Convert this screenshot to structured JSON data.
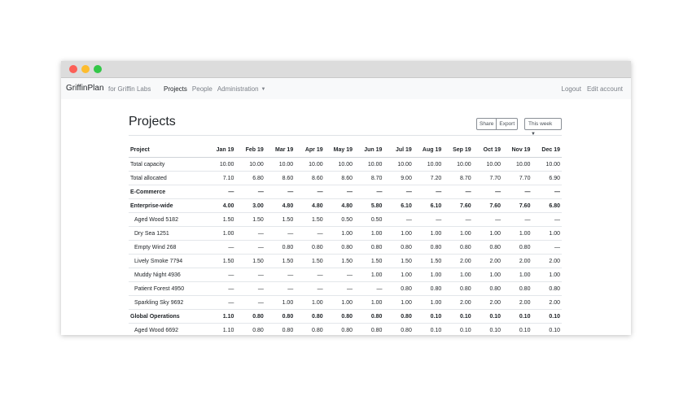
{
  "window": {
    "controls": [
      "close",
      "minimize",
      "maximize"
    ]
  },
  "navbar": {
    "brand": "GriffinPlan",
    "org": "for Griffin Labs",
    "links": [
      {
        "label": "Projects",
        "active": true
      },
      {
        "label": "People",
        "active": false
      },
      {
        "label": "Administration",
        "active": false,
        "dropdown": true
      }
    ],
    "right": [
      "Logout",
      "Edit account"
    ]
  },
  "page": {
    "title": "Projects",
    "buttons": {
      "share": "Share",
      "export": "Export",
      "range": "This week"
    }
  },
  "table": {
    "header": [
      "Project",
      "Jan 19",
      "Feb 19",
      "Mar 19",
      "Apr 19",
      "May 19",
      "Jun 19",
      "Jul 19",
      "Aug 19",
      "Sep 19",
      "Oct 19",
      "Nov 19",
      "Dec 19"
    ],
    "rows": [
      {
        "name": "Total capacity",
        "bold": false,
        "indent": false,
        "values": [
          "10.00",
          "10.00",
          "10.00",
          "10.00",
          "10.00",
          "10.00",
          "10.00",
          "10.00",
          "10.00",
          "10.00",
          "10.00",
          "10.00"
        ]
      },
      {
        "name": "Total allocated",
        "bold": false,
        "indent": false,
        "values": [
          "7.10",
          "6.80",
          "8.60",
          "8.60",
          "8.60",
          "8.70",
          "9.00",
          "7.20",
          "8.70",
          "7.70",
          "7.70",
          "6.90"
        ]
      },
      {
        "name": "E-Commerce",
        "bold": true,
        "indent": false,
        "values": [
          "—",
          "—",
          "—",
          "—",
          "—",
          "—",
          "—",
          "—",
          "—",
          "—",
          "—",
          "—"
        ]
      },
      {
        "name": "Enterprise-wide",
        "bold": true,
        "indent": false,
        "values": [
          "4.00",
          "3.00",
          "4.80",
          "4.80",
          "4.80",
          "5.80",
          "6.10",
          "6.10",
          "7.60",
          "7.60",
          "7.60",
          "6.80"
        ]
      },
      {
        "name": "Aged Wood 5182",
        "bold": false,
        "indent": true,
        "values": [
          "1.50",
          "1.50",
          "1.50",
          "1.50",
          "0.50",
          "0.50",
          "—",
          "—",
          "—",
          "—",
          "—",
          "—"
        ]
      },
      {
        "name": "Dry Sea 1251",
        "bold": false,
        "indent": true,
        "values": [
          "1.00",
          "—",
          "—",
          "—",
          "1.00",
          "1.00",
          "1.00",
          "1.00",
          "1.00",
          "1.00",
          "1.00",
          "1.00"
        ]
      },
      {
        "name": "Empty Wind 268",
        "bold": false,
        "indent": true,
        "values": [
          "—",
          "—",
          "0.80",
          "0.80",
          "0.80",
          "0.80",
          "0.80",
          "0.80",
          "0.80",
          "0.80",
          "0.80",
          "—"
        ]
      },
      {
        "name": "Lively Smoke 7794",
        "bold": false,
        "indent": true,
        "values": [
          "1.50",
          "1.50",
          "1.50",
          "1.50",
          "1.50",
          "1.50",
          "1.50",
          "1.50",
          "2.00",
          "2.00",
          "2.00",
          "2.00"
        ]
      },
      {
        "name": "Muddy Night 4936",
        "bold": false,
        "indent": true,
        "values": [
          "—",
          "—",
          "—",
          "—",
          "—",
          "1.00",
          "1.00",
          "1.00",
          "1.00",
          "1.00",
          "1.00",
          "1.00"
        ]
      },
      {
        "name": "Patient Forest 4950",
        "bold": false,
        "indent": true,
        "values": [
          "—",
          "—",
          "—",
          "—",
          "—",
          "—",
          "0.80",
          "0.80",
          "0.80",
          "0.80",
          "0.80",
          "0.80"
        ]
      },
      {
        "name": "Sparkling Sky 9692",
        "bold": false,
        "indent": true,
        "values": [
          "—",
          "—",
          "1.00",
          "1.00",
          "1.00",
          "1.00",
          "1.00",
          "1.00",
          "2.00",
          "2.00",
          "2.00",
          "2.00"
        ]
      },
      {
        "name": "Global Operations",
        "bold": true,
        "indent": false,
        "values": [
          "1.10",
          "0.80",
          "0.80",
          "0.80",
          "0.80",
          "0.80",
          "0.80",
          "0.10",
          "0.10",
          "0.10",
          "0.10",
          "0.10"
        ]
      },
      {
        "name": "Aged Wood 6692",
        "bold": false,
        "indent": true,
        "values": [
          "1.10",
          "0.80",
          "0.80",
          "0.80",
          "0.80",
          "0.80",
          "0.80",
          "0.10",
          "0.10",
          "0.10",
          "0.10",
          "0.10"
        ]
      }
    ]
  }
}
